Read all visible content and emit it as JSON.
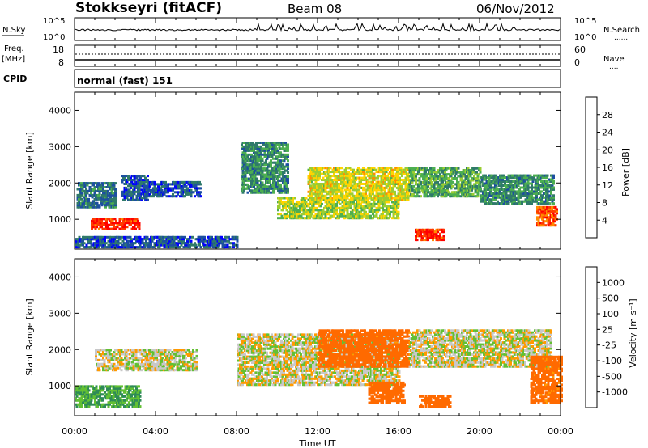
{
  "header": {
    "station": "Stokkseyri (fitACF)",
    "beam": "Beam 08",
    "date": "06/Nov/2012"
  },
  "panels": {
    "nsky": {
      "left_label": "N.Sky",
      "left_ticks": [
        "10^5",
        "10^0"
      ],
      "right_ticks": [
        "10^5",
        "10^0"
      ],
      "right_label": "N.Search",
      "right_legend": "......."
    },
    "freq": {
      "left_label_top": "Freq.",
      "left_label_unit": "[MHz]",
      "left_ticks": [
        "18",
        "8"
      ],
      "right_ticks": [
        "60",
        "0"
      ],
      "right_label": "Nave",
      "right_legend": "...."
    },
    "cpid": {
      "label": "CPID",
      "value": "normal (fast) 151"
    }
  },
  "axes": {
    "ylabel": "Slant Range [km]",
    "yticks": [
      "4000",
      "3000",
      "2000",
      "1000"
    ],
    "xticks": [
      "00:00",
      "04:00",
      "08:00",
      "12:00",
      "16:00",
      "20:00",
      "00:00"
    ],
    "xlabel": "Time UT"
  },
  "colorbars": {
    "power": {
      "label": "Power [dB]",
      "ticks": [
        "28",
        "24",
        "20",
        "16",
        "12",
        "8",
        "4"
      ],
      "colors": [
        "#0000ff",
        "#1c4fa0",
        "#2f7a6a",
        "#4caf50",
        "#9acd32",
        "#ffd400",
        "#ff8c00",
        "#ff3a00",
        "#ff0000"
      ]
    },
    "velocity": {
      "label": "Velocity [m s⁻¹]",
      "ticks": [
        "1000",
        "500",
        "100",
        "25",
        "-25",
        "-100",
        "-500",
        "-1000"
      ],
      "colors": [
        "#1a1aff",
        "#1c4fa0",
        "#2e8b57",
        "#63c033",
        "#c8c8c8",
        "#ff9a00",
        "#ff6a00",
        "#ff2a00",
        "#ff0000"
      ]
    }
  },
  "chart_data": {
    "type": "heatmap",
    "x_range": [
      "00:00",
      "24:00"
    ],
    "y_range": [
      180,
      4500
    ],
    "power_regions": [
      {
        "t_start": 0.1,
        "t_end": 2.0,
        "range_start": 1300,
        "range_end": 2000,
        "power_db": 8
      },
      {
        "t_start": 0.8,
        "t_end": 3.2,
        "range_start": 700,
        "range_end": 1000,
        "power_db": 28
      },
      {
        "t_start": 2.3,
        "t_end": 3.6,
        "range_start": 1500,
        "range_end": 2200,
        "power_db": 6
      },
      {
        "t_start": 0.0,
        "t_end": 8.0,
        "range_start": 200,
        "range_end": 500,
        "power_db": 6
      },
      {
        "t_start": 3.6,
        "t_end": 6.2,
        "range_start": 1600,
        "range_end": 2000,
        "power_db": 6
      },
      {
        "t_start": 8.2,
        "t_end": 10.5,
        "range_start": 1700,
        "range_end": 3100,
        "power_db": 10
      },
      {
        "t_start": 10.0,
        "t_end": 16.0,
        "range_start": 1000,
        "range_end": 1600,
        "power_db": 16
      },
      {
        "t_start": 11.5,
        "t_end": 16.5,
        "range_start": 1500,
        "range_end": 2400,
        "power_db": 18
      },
      {
        "t_start": 16.8,
        "t_end": 18.2,
        "range_start": 400,
        "range_end": 700,
        "power_db": 28
      },
      {
        "t_start": 16.5,
        "t_end": 20.0,
        "range_start": 1600,
        "range_end": 2400,
        "power_db": 12
      },
      {
        "t_start": 20.0,
        "t_end": 23.6,
        "range_start": 1400,
        "range_end": 2200,
        "power_db": 10
      },
      {
        "t_start": 22.8,
        "t_end": 23.8,
        "range_start": 800,
        "range_end": 1300,
        "power_db": 26
      }
    ],
    "velocity_regions": [
      {
        "t_start": 0.0,
        "t_end": 3.2,
        "range_start": 400,
        "range_end": 1000,
        "velocity": 100
      },
      {
        "t_start": 1.0,
        "t_end": 6.0,
        "range_start": 1400,
        "range_end": 2000,
        "velocity": 0
      },
      {
        "t_start": 8.0,
        "t_end": 16.0,
        "range_start": 1000,
        "range_end": 2400,
        "velocity": 0
      },
      {
        "t_start": 12.0,
        "t_end": 16.5,
        "range_start": 1500,
        "range_end": 2500,
        "velocity": -200
      },
      {
        "t_start": 14.5,
        "t_end": 16.3,
        "range_start": 500,
        "range_end": 1100,
        "velocity": -400
      },
      {
        "t_start": 17.0,
        "t_end": 18.5,
        "range_start": 400,
        "range_end": 700,
        "velocity": -300
      },
      {
        "t_start": 16.5,
        "t_end": 23.5,
        "range_start": 1500,
        "range_end": 2500,
        "velocity": 0
      },
      {
        "t_start": 22.5,
        "t_end": 24.0,
        "range_start": 500,
        "range_end": 1800,
        "velocity": -150
      }
    ]
  }
}
